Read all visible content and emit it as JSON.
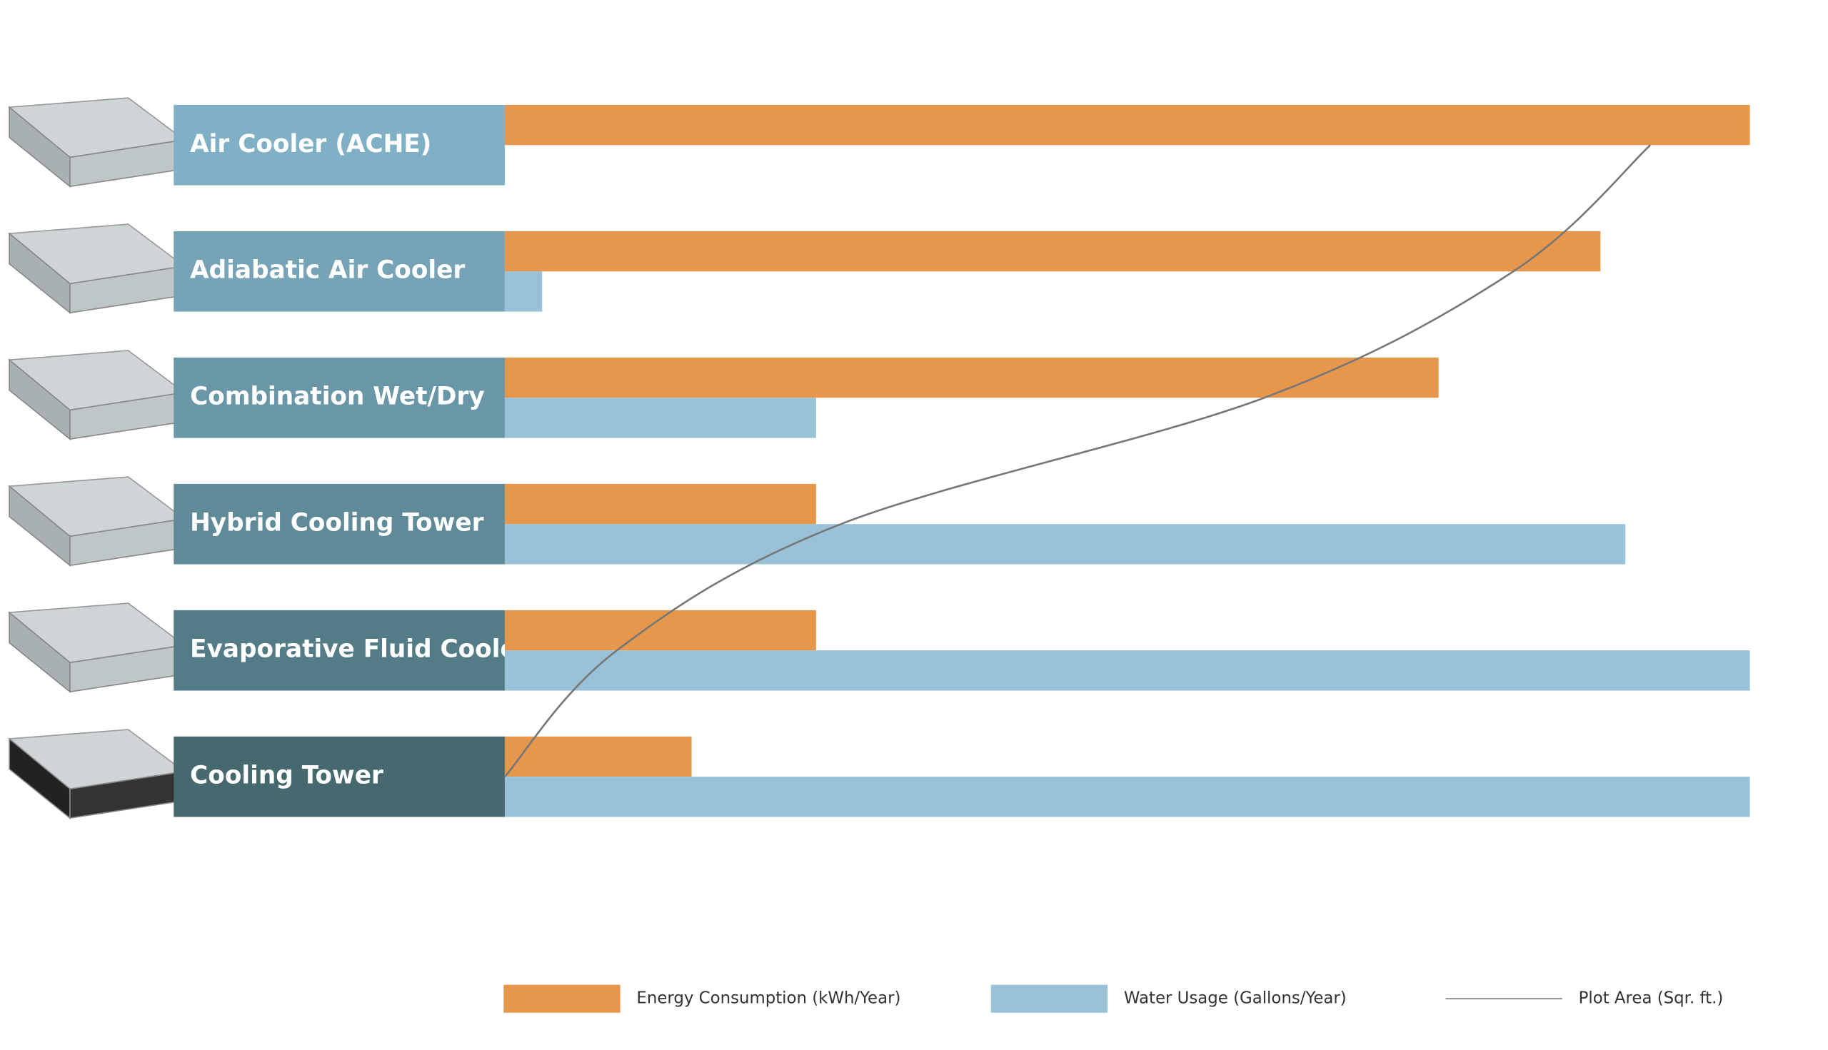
{
  "chart_data": {
    "type": "bar",
    "categories": [
      "Air Cooler (ACHE)",
      "Adiabatic Air Cooler",
      "Combination Wet/Dry",
      "Hybrid Cooling Tower",
      "Evaporative Fluid Cooler",
      "Cooling Tower"
    ],
    "series": [
      {
        "name": "Energy Consumption (kWh/Year)",
        "color": "#e6974b",
        "values": [
          100,
          88,
          75,
          25,
          25,
          15
        ]
      },
      {
        "name": "Water Usage (Gallons/Year)",
        "color": "#99c2d8",
        "values": [
          0,
          3,
          25,
          90,
          100,
          100
        ]
      },
      {
        "name": "Plot Area (Sqr. ft.)",
        "color": "#777777",
        "type": "line",
        "values": [
          92,
          81,
          61,
          27,
          9,
          0
        ]
      }
    ],
    "xlim": [
      0,
      100
    ],
    "label_colors": [
      "#7fb0c6",
      "#76a4b6",
      "#6a97a7",
      "#5f8a98",
      "#547c87",
      "#466970"
    ]
  }
}
